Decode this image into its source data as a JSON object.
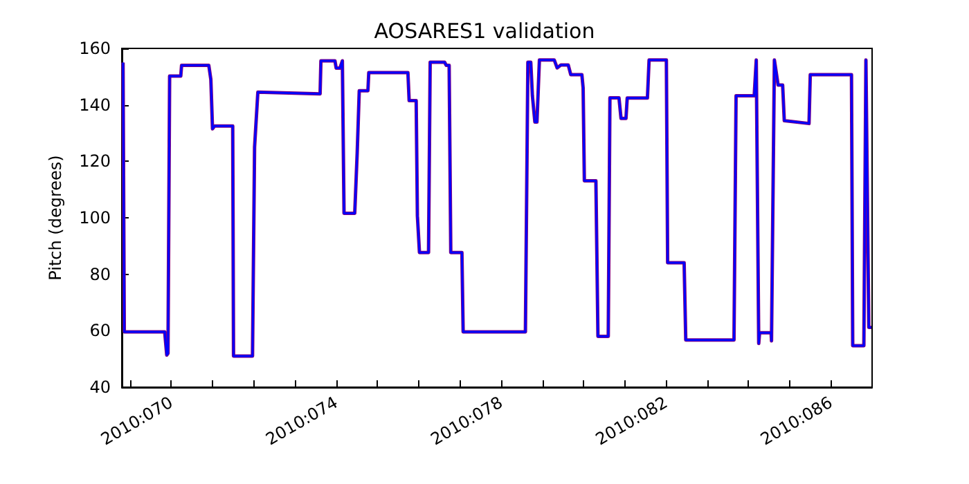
{
  "chart_data": {
    "type": "line",
    "title": "AOSARES1 validation",
    "ylabel": "Pitch (degrees)",
    "x": [
      "2010-03-09T19:55",
      "2010-03-09T20:38",
      "2010-03-10T20:10",
      "2010-03-10T21:22",
      "2010-03-10T22:05",
      "2010-03-10T23:02",
      "2010-03-11T05:31",
      "2010-03-11T06:00",
      "2010-03-11T21:50",
      "2010-03-11T23:02",
      "2010-03-12T00:00",
      "2010-03-12T01:12",
      "2010-03-12T11:46",
      "2010-03-12T12:14",
      "2010-03-12T23:17",
      "2010-03-13T00:29",
      "2010-03-13T02:24",
      "2010-03-14T14:38",
      "2010-03-14T15:07",
      "2010-03-14T23:17",
      "2010-03-15T00:00",
      "2010-03-15T02:10",
      "2010-03-15T03:36",
      "2010-03-15T04:34",
      "2010-03-15T10:48",
      "2010-03-15T12:14",
      "2010-03-15T13:26",
      "2010-03-15T18:29",
      "2010-03-15T18:58",
      "2010-03-16T17:46",
      "2010-03-16T18:29",
      "2010-03-16T22:34",
      "2010-03-16T23:17",
      "2010-03-17T00:29",
      "2010-03-17T05:46",
      "2010-03-17T06:43",
      "2010-03-17T15:07",
      "2010-03-17T16:05",
      "2010-03-17T17:46",
      "2010-03-17T18:43",
      "2010-03-18T01:12",
      "2010-03-18T01:55",
      "2010-03-19T14:10",
      "2010-03-19T15:36",
      "2010-03-19T17:17",
      "2010-03-19T18:14",
      "2010-03-19T19:41",
      "2010-03-19T20:53",
      "2010-03-19T22:19",
      "2010-03-20T06:58",
      "2010-03-20T08:38",
      "2010-03-20T10:48",
      "2010-03-20T15:07",
      "2010-03-20T16:34",
      "2010-03-20T23:02",
      "2010-03-20T23:46",
      "2010-03-21T00:29",
      "2010-03-21T07:12",
      "2010-03-21T08:24",
      "2010-03-21T14:24",
      "2010-03-21T15:22",
      "2010-03-21T20:38",
      "2010-03-21T21:50",
      "2010-03-22T00:43",
      "2010-03-22T01:26",
      "2010-03-22T13:12",
      "2010-03-22T14:10",
      "2010-03-23T00:14",
      "2010-03-23T00:58",
      "2010-03-23T10:34",
      "2010-03-23T11:31",
      "2010-03-24T15:36",
      "2010-03-24T16:48",
      "2010-03-25T03:22",
      "2010-03-25T04:34",
      "2010-03-25T06:00",
      "2010-03-25T06:29",
      "2010-03-25T13:12",
      "2010-03-25T13:26",
      "2010-03-25T15:07",
      "2010-03-25T17:17",
      "2010-03-25T19:55",
      "2010-03-25T20:53",
      "2010-03-26T11:17",
      "2010-03-26T12:00",
      "2010-03-27T12:00",
      "2010-03-27T12:43",
      "2010-03-27T19:12",
      "2010-03-27T20:24",
      "2010-03-27T22:05",
      "2010-03-27T23:31"
    ],
    "series": [
      {
        "color": "#800080",
        "values": [
          155,
          59.6,
          59.6,
          51.4,
          52,
          150.2,
          150.2,
          154,
          154,
          149,
          131.5,
          132.5,
          132.5,
          51,
          51,
          125,
          144.5,
          143.9,
          155.6,
          155.6,
          153,
          153,
          155.6,
          101.6,
          101.6,
          123,
          145,
          145,
          151.4,
          151.4,
          141.5,
          141.5,
          100.7,
          87.7,
          87.7,
          155.1,
          155.1,
          154,
          154,
          87.7,
          87.7,
          59.6,
          59.6,
          155.1,
          155.1,
          143.2,
          133.9,
          133.9,
          155.9,
          155.9,
          153.1,
          154.1,
          154.1,
          150.7,
          150.7,
          146,
          113.1,
          113.1,
          58,
          58,
          142.5,
          142.5,
          135.2,
          135.2,
          142.4,
          142.4,
          155.9,
          155.9,
          84.1,
          84.1,
          56.7,
          56.7,
          143.2,
          143.2,
          155.9,
          55.5,
          59.3,
          59.3,
          56.4,
          155.9,
          147,
          147,
          134.4,
          133.4,
          150.7,
          150.7,
          54.7,
          54.7,
          155.9,
          61.2,
          61.2
        ]
      },
      {
        "color": "#0000ff",
        "values": [
          155,
          59.6,
          59.6,
          51.4,
          52,
          150.2,
          150.2,
          154,
          154,
          149,
          131.5,
          132.5,
          132.5,
          51,
          51,
          125,
          144.5,
          143.9,
          155.6,
          155.6,
          153,
          153,
          155.6,
          101.6,
          101.6,
          123,
          145,
          145,
          151.4,
          151.4,
          141.5,
          141.5,
          100.7,
          87.7,
          87.7,
          155.1,
          155.1,
          154,
          154,
          87.7,
          87.7,
          59.6,
          59.6,
          155.1,
          155.1,
          143.2,
          133.9,
          133.9,
          155.9,
          155.9,
          153.1,
          154.1,
          154.1,
          150.7,
          150.7,
          146,
          113.1,
          113.1,
          58,
          58,
          142.5,
          142.5,
          135.2,
          135.2,
          142.4,
          142.4,
          155.9,
          155.9,
          84.1,
          84.1,
          56.7,
          56.7,
          143.2,
          143.2,
          155.9,
          55.5,
          59.3,
          59.3,
          56.4,
          155.9,
          147,
          147,
          134.4,
          133.4,
          150.7,
          150.7,
          54.7,
          54.7,
          155.9,
          61.2,
          61.2
        ]
      }
    ],
    "xlim": [
      "2010-03-09T19:12",
      "2010-03-28T00:00"
    ],
    "xticks": [
      {
        "value": "2010-03-10",
        "label": null
      },
      {
        "value": "2010-03-11",
        "label": "2010:070"
      },
      {
        "value": "2010-03-12",
        "label": null
      },
      {
        "value": "2010-03-13",
        "label": null
      },
      {
        "value": "2010-03-14",
        "label": null
      },
      {
        "value": "2010-03-15",
        "label": "2010:074"
      },
      {
        "value": "2010-03-16",
        "label": null
      },
      {
        "value": "2010-03-17",
        "label": null
      },
      {
        "value": "2010-03-18",
        "label": null
      },
      {
        "value": "2010-03-19",
        "label": "2010:078"
      },
      {
        "value": "2010-03-20",
        "label": null
      },
      {
        "value": "2010-03-21",
        "label": null
      },
      {
        "value": "2010-03-22",
        "label": null
      },
      {
        "value": "2010-03-23",
        "label": "2010:082"
      },
      {
        "value": "2010-03-24",
        "label": null
      },
      {
        "value": "2010-03-25",
        "label": null
      },
      {
        "value": "2010-03-26",
        "label": null
      },
      {
        "value": "2010-03-27",
        "label": "2010:086"
      }
    ],
    "ylim": [
      40,
      160
    ],
    "yticks": [
      40,
      60,
      80,
      100,
      120,
      140,
      160
    ],
    "line_style": "solid"
  }
}
